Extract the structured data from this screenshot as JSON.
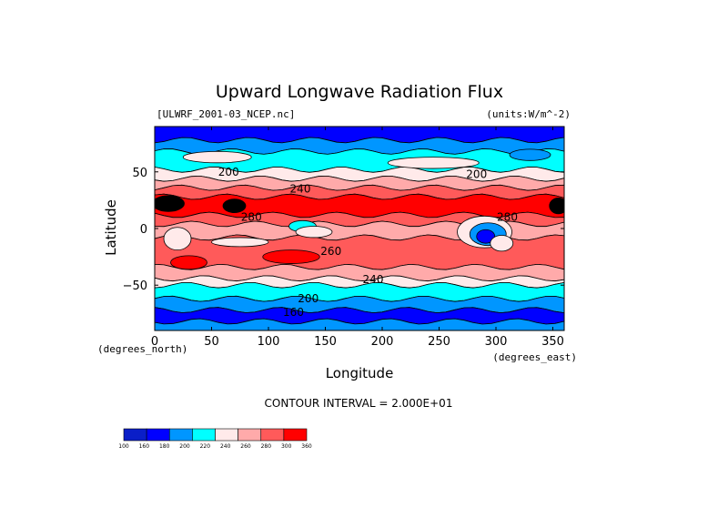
{
  "chart_data": {
    "type": "heatmap",
    "title": "Upward Longwave Radiation Flux",
    "subtitle_left": "[ULWRF_2001-03_NCEP.nc]",
    "subtitle_right": "(units:W/m^-2)",
    "xlabel": "Longitude",
    "ylabel": "Latitude",
    "x_unit_note": "(degrees_east)",
    "y_unit_note": "(degrees_north)",
    "xlim": [
      0,
      360
    ],
    "ylim": [
      -90,
      90
    ],
    "x_ticks": [
      0,
      50,
      100,
      150,
      200,
      250,
      300,
      350
    ],
    "x_tick_labels": [
      "0",
      "50",
      "100",
      "150",
      "200",
      "250",
      "300",
      "350"
    ],
    "y_ticks": [
      50,
      0,
      -50
    ],
    "y_tick_labels": [
      "50",
      "0",
      "−50"
    ],
    "contour_interval_text": "CONTOUR INTERVAL = 2.000E+01",
    "colorbar": {
      "levels": [
        100,
        160,
        180,
        200,
        220,
        240,
        260,
        280,
        300,
        360
      ],
      "labels": [
        "100",
        "160",
        "180",
        "200",
        "220",
        "240",
        "260",
        "280",
        "300",
        "360"
      ],
      "colors": [
        "#0a1ec8",
        "#0000ff",
        "#0096ff",
        "#00ffff",
        "#ffeaea",
        "#ffaaaa",
        "#ff5a5a",
        "#ff0000"
      ]
    },
    "contour_labels": [
      {
        "text": "200",
        "lon": 65,
        "lat": 50
      },
      {
        "text": "240",
        "lon": 128,
        "lat": 35
      },
      {
        "text": "200",
        "lon": 283,
        "lat": 48
      },
      {
        "text": "280",
        "lon": 85,
        "lat": 10
      },
      {
        "text": "280",
        "lon": 310,
        "lat": 10
      },
      {
        "text": "260",
        "lon": 155,
        "lat": -20
      },
      {
        "text": "240",
        "lon": 192,
        "lat": -45
      },
      {
        "text": "200",
        "lon": 135,
        "lat": -62
      },
      {
        "text": "160",
        "lon": 122,
        "lat": -74
      }
    ],
    "latitude_bands": [
      {
        "lat_from": 90,
        "lat_to": 78,
        "level": 160
      },
      {
        "lat_from": 78,
        "lat_to": 68,
        "level": 180
      },
      {
        "lat_from": 68,
        "lat_to": 52,
        "level": 200
      },
      {
        "lat_from": 52,
        "lat_to": 44,
        "level": 220
      },
      {
        "lat_from": 44,
        "lat_to": 36,
        "level": 240
      },
      {
        "lat_from": 36,
        "lat_to": 28,
        "level": 260
      },
      {
        "lat_from": 28,
        "lat_to": 12,
        "level": 280
      },
      {
        "lat_from": 12,
        "lat_to": 4,
        "level": 260
      },
      {
        "lat_from": 4,
        "lat_to": -8,
        "level": 240
      },
      {
        "lat_from": -8,
        "lat_to": -34,
        "level": 260
      },
      {
        "lat_from": -34,
        "lat_to": -44,
        "level": 240
      },
      {
        "lat_from": -44,
        "lat_to": -50,
        "level": 220
      },
      {
        "lat_from": -50,
        "lat_to": -62,
        "level": 200
      },
      {
        "lat_from": -62,
        "lat_to": -72,
        "level": 180
      },
      {
        "lat_from": -72,
        "lat_to": -82,
        "level": 160
      },
      {
        "lat_from": -82,
        "lat_to": -90,
        "level": 180
      }
    ],
    "patches": [
      {
        "lon": 12,
        "lat": 22,
        "rlon": 14,
        "rlat": 7,
        "level": 300
      },
      {
        "lon": 70,
        "lat": 20,
        "rlon": 10,
        "rlat": 6,
        "level": 300
      },
      {
        "lon": 355,
        "lat": 20,
        "rlon": 8,
        "rlat": 7,
        "level": 300
      },
      {
        "lon": 20,
        "lat": -9,
        "rlon": 12,
        "rlat": 10,
        "level": 220
      },
      {
        "lon": 130,
        "lat": 2,
        "rlon": 12,
        "rlat": 5,
        "level": 200
      },
      {
        "lon": 140,
        "lat": -3,
        "rlon": 16,
        "rlat": 5,
        "level": 220
      },
      {
        "lon": 75,
        "lat": -12,
        "rlon": 25,
        "rlat": 4,
        "level": 220
      },
      {
        "lon": 290,
        "lat": -3,
        "rlon": 24,
        "rlat": 14,
        "level": 220
      },
      {
        "lon": 293,
        "lat": -5,
        "rlon": 16,
        "rlat": 10,
        "level": 180
      },
      {
        "lon": 291,
        "lat": -7,
        "rlon": 8,
        "rlat": 6,
        "level": 160
      },
      {
        "lon": 305,
        "lat": -13,
        "rlon": 10,
        "rlat": 7,
        "level": 220
      },
      {
        "lon": 120,
        "lat": -25,
        "rlon": 25,
        "rlat": 6,
        "level": 280
      },
      {
        "lon": 30,
        "lat": -30,
        "rlon": 16,
        "rlat": 6,
        "level": 280
      },
      {
        "lon": 55,
        "lat": 63,
        "rlon": 30,
        "rlat": 5,
        "level": 220
      },
      {
        "lon": 245,
        "lat": 58,
        "rlon": 40,
        "rlat": 5,
        "level": 220
      },
      {
        "lon": 330,
        "lat": 65,
        "rlon": 18,
        "rlat": 5,
        "level": 180
      }
    ]
  }
}
